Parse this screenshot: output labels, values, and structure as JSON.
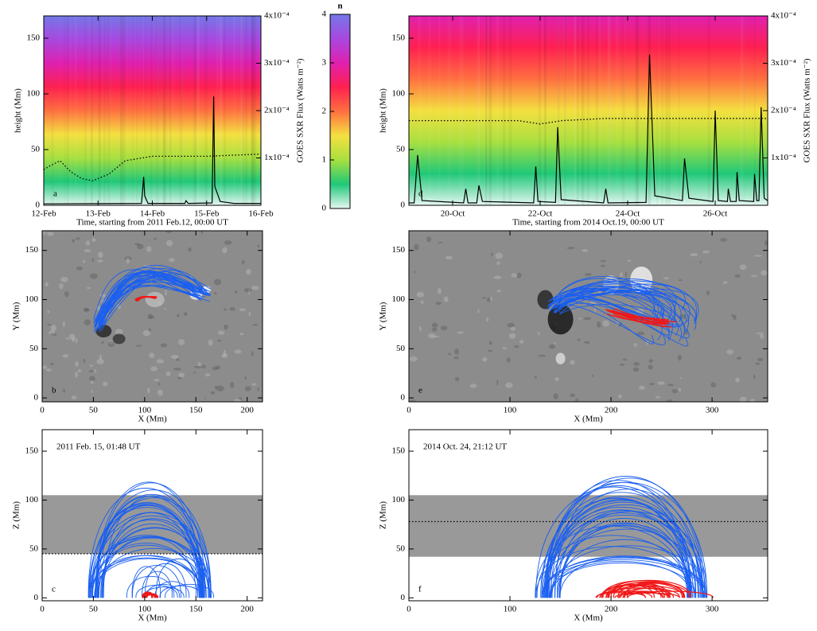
{
  "chart_data": [
    {
      "type": "line",
      "label": "a",
      "xlabel": "Time, starting from 2011 Feb.12, 00:00 UT",
      "ylabel": "height (Mm)",
      "y2label": "GOES SXR Flux (Watts m⁻²)",
      "xlim": [
        0,
        4
      ],
      "xticks": [
        {
          "value": 0,
          "label": "12-Feb"
        },
        {
          "value": 1,
          "label": "13-Feb"
        },
        {
          "value": 2,
          "label": "14-Feb"
        },
        {
          "value": 3,
          "label": "15-Feb"
        },
        {
          "value": 4,
          "label": "16-Feb"
        }
      ],
      "ylim": [
        0,
        170
      ],
      "yticks": [
        0,
        50,
        100,
        150
      ],
      "y2lim": [
        0,
        0.0004
      ],
      "y2ticks": [
        {
          "value": 0.0001,
          "label": "1x10⁻⁴"
        },
        {
          "value": 0.0002,
          "label": "2x10⁻⁴"
        },
        {
          "value": 0.0003,
          "label": "3x10⁻⁴"
        },
        {
          "value": 0.0004,
          "label": "4x10⁻⁴"
        }
      ],
      "series": [
        {
          "color": "#000000",
          "style": "dotted",
          "x": [
            0,
            0.1,
            0.3,
            0.5,
            0.7,
            0.9,
            1.2,
            1.5,
            2,
            3,
            4
          ],
          "values": [
            32,
            35,
            40,
            30,
            24,
            22,
            28,
            40,
            44,
            44,
            46
          ]
        },
        {
          "color": "#000000",
          "axis": "y2",
          "x": [
            0,
            1.8,
            1.84,
            1.86,
            1.92,
            2.6,
            2.62,
            2.66,
            3.1,
            3.13,
            3.15,
            3.25,
            3.5,
            4
          ],
          "values": [
            3e-06,
            4e-06,
            6e-05,
            2e-05,
            4e-06,
            4e-06,
            1e-05,
            4e-06,
            5e-06,
            0.00023,
            4e-05,
            8e-06,
            4e-06,
            4e-06
          ]
        }
      ]
    },
    {
      "type": "line",
      "label": "d",
      "xlabel": "Time, starting from 2014 Oct.19, 00:00 UT",
      "ylabel": "height (Mm)",
      "y2label": "GOES SXR Flux (Watts m⁻²)",
      "xlim": [
        0,
        8.2
      ],
      "xticks": [
        {
          "value": 1,
          "label": "20-Oct"
        },
        {
          "value": 3,
          "label": "22-Oct"
        },
        {
          "value": 5,
          "label": "24-Oct"
        },
        {
          "value": 7,
          "label": "26-Oct"
        }
      ],
      "ylim": [
        0,
        170
      ],
      "yticks": [
        0,
        50,
        100,
        150
      ],
      "y2lim": [
        0,
        0.0004
      ],
      "y2ticks": [
        {
          "value": 0.0001,
          "label": "1x10⁻⁴"
        },
        {
          "value": 0.0002,
          "label": "2x10⁻⁴"
        },
        {
          "value": 0.0003,
          "label": "3x10⁻⁴"
        },
        {
          "value": 0.0004,
          "label": "4x10⁻⁴"
        }
      ],
      "series": [
        {
          "color": "#000000",
          "style": "dotted",
          "x": [
            0,
            2.5,
            3,
            3.5,
            4.5,
            8.2
          ],
          "values": [
            76,
            76,
            73,
            76,
            78,
            78
          ]
        },
        {
          "color": "#000000",
          "axis": "y2",
          "x": [
            0,
            0.12,
            0.2,
            0.3,
            1.25,
            1.3,
            1.35,
            1.55,
            1.6,
            1.68,
            2.85,
            2.9,
            2.95,
            3.35,
            3.4,
            3.48,
            4.45,
            4.5,
            4.55,
            5.42,
            5.5,
            5.62,
            6.25,
            6.3,
            6.4,
            6.95,
            7.0,
            7.07,
            7.28,
            7.3,
            7.35,
            7.48,
            7.5,
            7.55,
            7.88,
            7.9,
            7.95,
            8.0,
            8.05,
            8.12,
            8.2
          ],
          "values": [
            5e-06,
            5e-06,
            0.000106,
            1e-05,
            5e-06,
            3.5e-05,
            5e-06,
            5e-06,
            4.2e-05,
            8e-06,
            5e-06,
            8.2e-05,
            8e-06,
            6e-06,
            0.000165,
            1.2e-05,
            5e-06,
            3.5e-05,
            5e-06,
            6e-06,
            0.000318,
            2e-05,
            1e-05,
            9.9e-05,
            1.5e-05,
            8e-06,
            0.0002,
            1e-05,
            8e-06,
            3.5e-05,
            8e-06,
            8e-06,
            7e-05,
            1e-05,
            8e-06,
            6.6e-05,
            1e-05,
            1e-05,
            0.000207,
            1.5e-05,
            1e-05
          ]
        }
      ]
    },
    {
      "type": "image",
      "label": "b",
      "xlabel": "X (Mm)",
      "ylabel": "Y (Mm)",
      "xlim": [
        0,
        215
      ],
      "xticks": [
        0,
        50,
        100,
        150,
        200
      ],
      "ylim": [
        -4,
        170
      ],
      "yticks": [
        0,
        50,
        100,
        150
      ]
    },
    {
      "type": "image",
      "label": "e",
      "xlabel": "X (Mm)",
      "ylabel": "Y (Mm)",
      "xlim": [
        0,
        355
      ],
      "xticks": [
        0,
        100,
        200,
        300
      ],
      "ylim": [
        -4,
        170
      ],
      "yticks": [
        0,
        50,
        100,
        150
      ]
    },
    {
      "type": "loops",
      "label": "c",
      "annotation": "2011 Feb. 15, 01:48 UT",
      "xlabel": "X (Mm)",
      "ylabel": "Z (Mm)",
      "xlim": [
        0,
        215
      ],
      "xticks": [
        0,
        50,
        100,
        150,
        200
      ],
      "ylim": [
        -3,
        172
      ],
      "yticks": [
        0,
        50,
        100,
        150
      ],
      "band": [
        45,
        105
      ],
      "dotted_level": 45
    },
    {
      "type": "loops",
      "label": "f",
      "annotation": "2014 Oct. 24, 21:12 UT",
      "xlabel": "X (Mm)",
      "ylabel": "Z (Mm)",
      "xlim": [
        0,
        355
      ],
      "xticks": [
        0,
        100,
        200,
        300
      ],
      "ylim": [
        -3,
        172
      ],
      "yticks": [
        0,
        50,
        100,
        150
      ],
      "band": [
        42,
        105
      ],
      "dotted_level": 78
    },
    {
      "type": "colorbar",
      "title": "n",
      "ylim": [
        0,
        4
      ],
      "yticks": [
        0,
        1,
        2,
        3,
        4
      ],
      "colors": [
        "#e6f7f2",
        "#20c878",
        "#a8e040",
        "#f4e040",
        "#ff7040",
        "#ff2050",
        "#e020b0",
        "#a848e0",
        "#7478e8"
      ]
    }
  ]
}
